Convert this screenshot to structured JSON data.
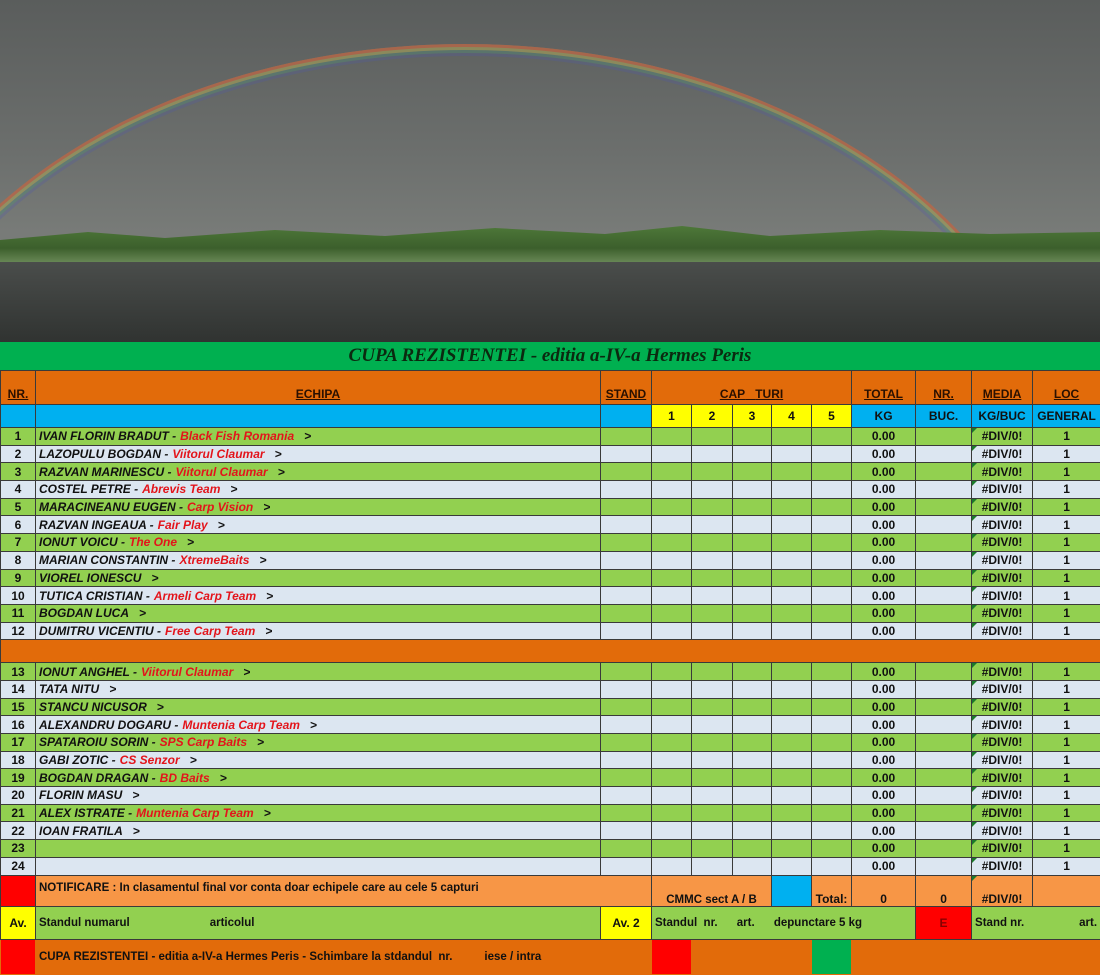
{
  "title": "CUPA REZISTENTEI - editia a-IV-a Hermes Peris",
  "headers": {
    "nr": "NR.",
    "echipa": "ECHIPA",
    "stand": "STAND",
    "cap": "CAP",
    "turi": "TURI",
    "total": "TOTAL",
    "nr2": "NR.",
    "media": "MEDIA",
    "loc": "LOC"
  },
  "subheaders": {
    "caps": [
      "1",
      "2",
      "3",
      "4",
      "5"
    ],
    "kg": "KG",
    "buc": "BUC.",
    "kgbuc": "KG/BUC",
    "general": "GENERAL"
  },
  "rows": [
    {
      "nr": "1",
      "name": "IVAN  FLORIN  BRADUT  -",
      "team": "Black Fish  Romania",
      "total": "0.00",
      "media": "#DIV/0!",
      "loc": "1"
    },
    {
      "nr": "2",
      "name": "LAZOPULU BOGDAN  -",
      "team": "Viitorul Claumar",
      "total": "0.00",
      "media": "#DIV/0!",
      "loc": "1"
    },
    {
      "nr": "3",
      "name": "RAZVAN  MARINESCU  -",
      "team": "Viitorul Claumar",
      "total": "0.00",
      "media": "#DIV/0!",
      "loc": "1"
    },
    {
      "nr": "4",
      "name": "COSTEL PETRE  -",
      "team": "Abrevis Team",
      "total": "0.00",
      "media": "#DIV/0!",
      "loc": "1"
    },
    {
      "nr": "5",
      "name": "MARACINEANU  EUGEN  -",
      "team": "Carp Vision",
      "total": "0.00",
      "media": "#DIV/0!",
      "loc": "1"
    },
    {
      "nr": "6",
      "name": "RAZVAN  INGEAUA  -",
      "team": "Fair Play",
      "total": "0.00",
      "media": "#DIV/0!",
      "loc": "1"
    },
    {
      "nr": "7",
      "name": "IONUT  VOICU -",
      "team": "The One",
      "total": "0.00",
      "media": "#DIV/0!",
      "loc": "1"
    },
    {
      "nr": "8",
      "name": "MARIAN  CONSTANTIN  -",
      "team": "XtremeBaits",
      "total": "0.00",
      "media": "#DIV/0!",
      "loc": "1"
    },
    {
      "nr": "9",
      "name": "VIOREL  IONESCU",
      "team": "",
      "total": "0.00",
      "media": "#DIV/0!",
      "loc": "1"
    },
    {
      "nr": "10",
      "name": "TUTICA  CRISTIAN -",
      "team": "Armeli Carp Team",
      "total": "0.00",
      "media": "#DIV/0!",
      "loc": "1"
    },
    {
      "nr": "11",
      "name": "BOGDAN  LUCA",
      "team": "",
      "total": "0.00",
      "media": "#DIV/0!",
      "loc": "1"
    },
    {
      "nr": "12",
      "name": "DUMITRU  VICENTIU -",
      "team": "Free Carp Team",
      "total": "0.00",
      "media": "#DIV/0!",
      "loc": "1"
    }
  ],
  "rows2": [
    {
      "nr": "13",
      "name": "IONUT ANGHEL -",
      "team": "Viitorul Claumar",
      "total": "0.00",
      "media": "#DIV/0!",
      "loc": "1"
    },
    {
      "nr": "14",
      "name": "TATA  NITU",
      "team": "",
      "total": "0.00",
      "media": "#DIV/0!",
      "loc": "1"
    },
    {
      "nr": "15",
      "name": "STANCU  NICUSOR",
      "team": "",
      "total": "0.00",
      "media": "#DIV/0!",
      "loc": "1"
    },
    {
      "nr": "16",
      "name": "ALEXANDRU  DOGARU -",
      "team": "Muntenia Carp Team",
      "total": "0.00",
      "media": "#DIV/0!",
      "loc": "1"
    },
    {
      "nr": "17",
      "name": "SPATAROIU  SORIN -",
      "team": "SPS Carp Baits",
      "total": "0.00",
      "media": "#DIV/0!",
      "loc": "1"
    },
    {
      "nr": "18",
      "name": "GABI ZOTIC -",
      "team": "CS Senzor",
      "total": "0.00",
      "media": "#DIV/0!",
      "loc": "1"
    },
    {
      "nr": "19",
      "name": "BOGDAN  DRAGAN -",
      "team": "BD Baits",
      "total": "0.00",
      "media": "#DIV/0!",
      "loc": "1"
    },
    {
      "nr": "20",
      "name": "FLORIN  MASU",
      "team": "",
      "total": "0.00",
      "media": "#DIV/0!",
      "loc": "1"
    },
    {
      "nr": "21",
      "name": "ALEX  ISTRATE -",
      "team": "Muntenia Carp Team",
      "total": "0.00",
      "media": "#DIV/0!",
      "loc": "1"
    },
    {
      "nr": "22",
      "name": "IOAN  FRATILA",
      "team": "",
      "total": "0.00",
      "media": "#DIV/0!",
      "loc": "1"
    },
    {
      "nr": "23",
      "name": "",
      "team": "",
      "total": "0.00",
      "media": "#DIV/0!",
      "loc": "1"
    },
    {
      "nr": "24",
      "name": "",
      "team": "",
      "total": "0.00",
      "media": "#DIV/0!",
      "loc": "1"
    }
  ],
  "arrow": ">",
  "footer": {
    "notificare": "NOTIFICARE :    In clasamentul final vor conta doar echipele care au cele 5 capturi",
    "cmmc": "CMMC sect  A / B",
    "total_label": "Total:",
    "total_kg": "0",
    "total_buc": "0",
    "total_media": "#DIV/0!",
    "av": "Av.",
    "standul_numarul": "Standul numarul",
    "articolul": "articolul",
    "av2": "Av. 2",
    "standul_nr": "Standul  nr.      art.      depunctare 5 kg",
    "e": "E",
    "stand_nr": "Stand nr.",
    "art": "art.",
    "bottom": "CUPA REZISTENTEI - editia a-IV-a Hermes Peris - Schimbare la stdandul  nr.          iese / intra"
  },
  "colors": {
    "orange": "#e26b0a",
    "green": "#92d050",
    "light": "#dce6f1",
    "blue": "#00b0f0",
    "yellow": "#ffff00",
    "red": "#ff0000",
    "title_green": "#00b050"
  }
}
